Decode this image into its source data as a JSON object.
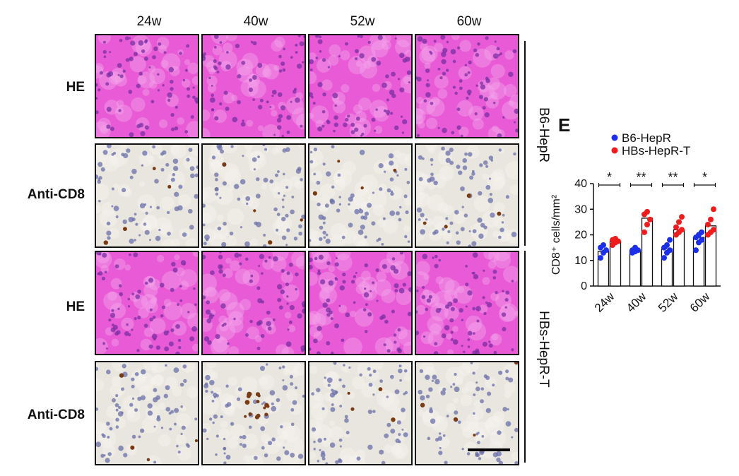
{
  "column_headers": [
    "24w",
    "40w",
    "52w",
    "60w"
  ],
  "row_labels": [
    "HE",
    "Anti-CD8",
    "HE",
    "Anti-CD8"
  ],
  "group_labels": [
    "B6-HepR",
    "HBs-HepR-T"
  ],
  "panel_letter": "E",
  "colors": {
    "he_stain": "#e85ad6",
    "he_nucleus": "#7a2fa3",
    "ihc_background": "#e9e6df",
    "ihc_nucleus": "#6a6fa8",
    "cd8_positive": "#7a3a12",
    "b6_series": "#1c2fe8",
    "hbs_series": "#ee1c1c"
  },
  "chart_data": {
    "type": "bar",
    "categories": [
      "24w",
      "40w",
      "52w",
      "60w"
    ],
    "ylabel": "CD8⁺ cells/mm²",
    "ylim": [
      0,
      40
    ],
    "yticks": [
      "0",
      "10",
      "20",
      "30",
      "40"
    ],
    "legend_placement": "top",
    "series": [
      {
        "name": "B6-HepR",
        "values": [
          13.5,
          14,
          14.5,
          19
        ],
        "points": [
          [
            11,
            13,
            14,
            15,
            16
          ],
          [
            13,
            13.5,
            14,
            14,
            15
          ],
          [
            11,
            13,
            14,
            15,
            16,
            18
          ],
          [
            14,
            17,
            18,
            19,
            20,
            21
          ]
        ]
      },
      {
        "name": "HBs-HepR-T",
        "values": [
          17.5,
          26.5,
          22,
          23.5
        ],
        "points": [
          [
            16,
            17,
            17.5,
            18,
            18.5
          ],
          [
            21,
            24,
            26,
            28,
            29
          ],
          [
            20,
            21,
            22,
            23,
            25,
            27
          ],
          [
            20,
            21,
            22,
            24,
            26,
            30
          ]
        ]
      }
    ],
    "significance": [
      "*",
      "**",
      "**",
      "*"
    ]
  }
}
